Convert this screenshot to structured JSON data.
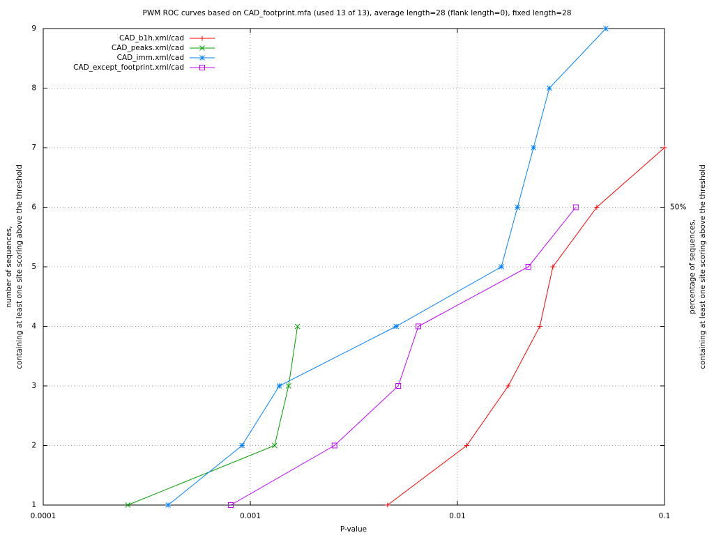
{
  "chart_data": {
    "type": "line",
    "title": "PWM ROC curves based on CAD_footprint.mfa (used 13 of 13), average length=28 (flank length=0), fixed length=28",
    "x_label": "P-value",
    "y_label": [
      "number of sequences,",
      "containing at least one site scoring above the threshold"
    ],
    "y2_label": [
      "percentage of sequences,",
      "containing at least one site scoring above the threshold"
    ],
    "x_log": true,
    "grid": true,
    "legend": "top-left",
    "xlim": [
      0.0001,
      0.1
    ],
    "xticks": [
      0.0001,
      0.001,
      0.01,
      0.1
    ],
    "ylim": [
      1,
      9
    ],
    "yticks": [
      1,
      2,
      3,
      4,
      5,
      6,
      7,
      8,
      9
    ],
    "y2lim": [
      1,
      9
    ],
    "y2ticks": [
      {
        "value": 6,
        "label": "50%"
      }
    ],
    "series": [
      {
        "name": "CAD_b1h.xml/cad",
        "color": "#ff0000",
        "marker": "plus",
        "x": [
          0.0046,
          0.0111,
          0.0176,
          0.025,
          0.0289,
          0.0471,
          0.1
        ],
        "values": [
          1,
          2,
          3,
          4,
          5,
          6,
          7
        ]
      },
      {
        "name": "CAD_peaks.xml/cad",
        "color": "#00a000",
        "marker": "cross",
        "x": [
          0.000256,
          0.00131,
          0.00153,
          0.00169
        ],
        "values": [
          1,
          2,
          3,
          4
        ]
      },
      {
        "name": "CAD_imm.xml/cad",
        "color": "#0080ff",
        "marker": "star",
        "x": [
          0.000401,
          0.000912,
          0.00138,
          0.00506,
          0.0163,
          0.0195,
          0.0233,
          0.0278,
          0.0521
        ],
        "values": [
          1,
          2,
          3,
          4,
          5,
          6,
          7,
          8,
          9
        ]
      },
      {
        "name": "CAD_except_footprint.xml/cad",
        "color": "#c000ff",
        "marker": "square",
        "x": [
          0.000805,
          0.00255,
          0.00518,
          0.00648,
          0.022,
          0.0373
        ],
        "values": [
          1,
          2,
          3,
          4,
          5,
          6
        ]
      }
    ]
  }
}
